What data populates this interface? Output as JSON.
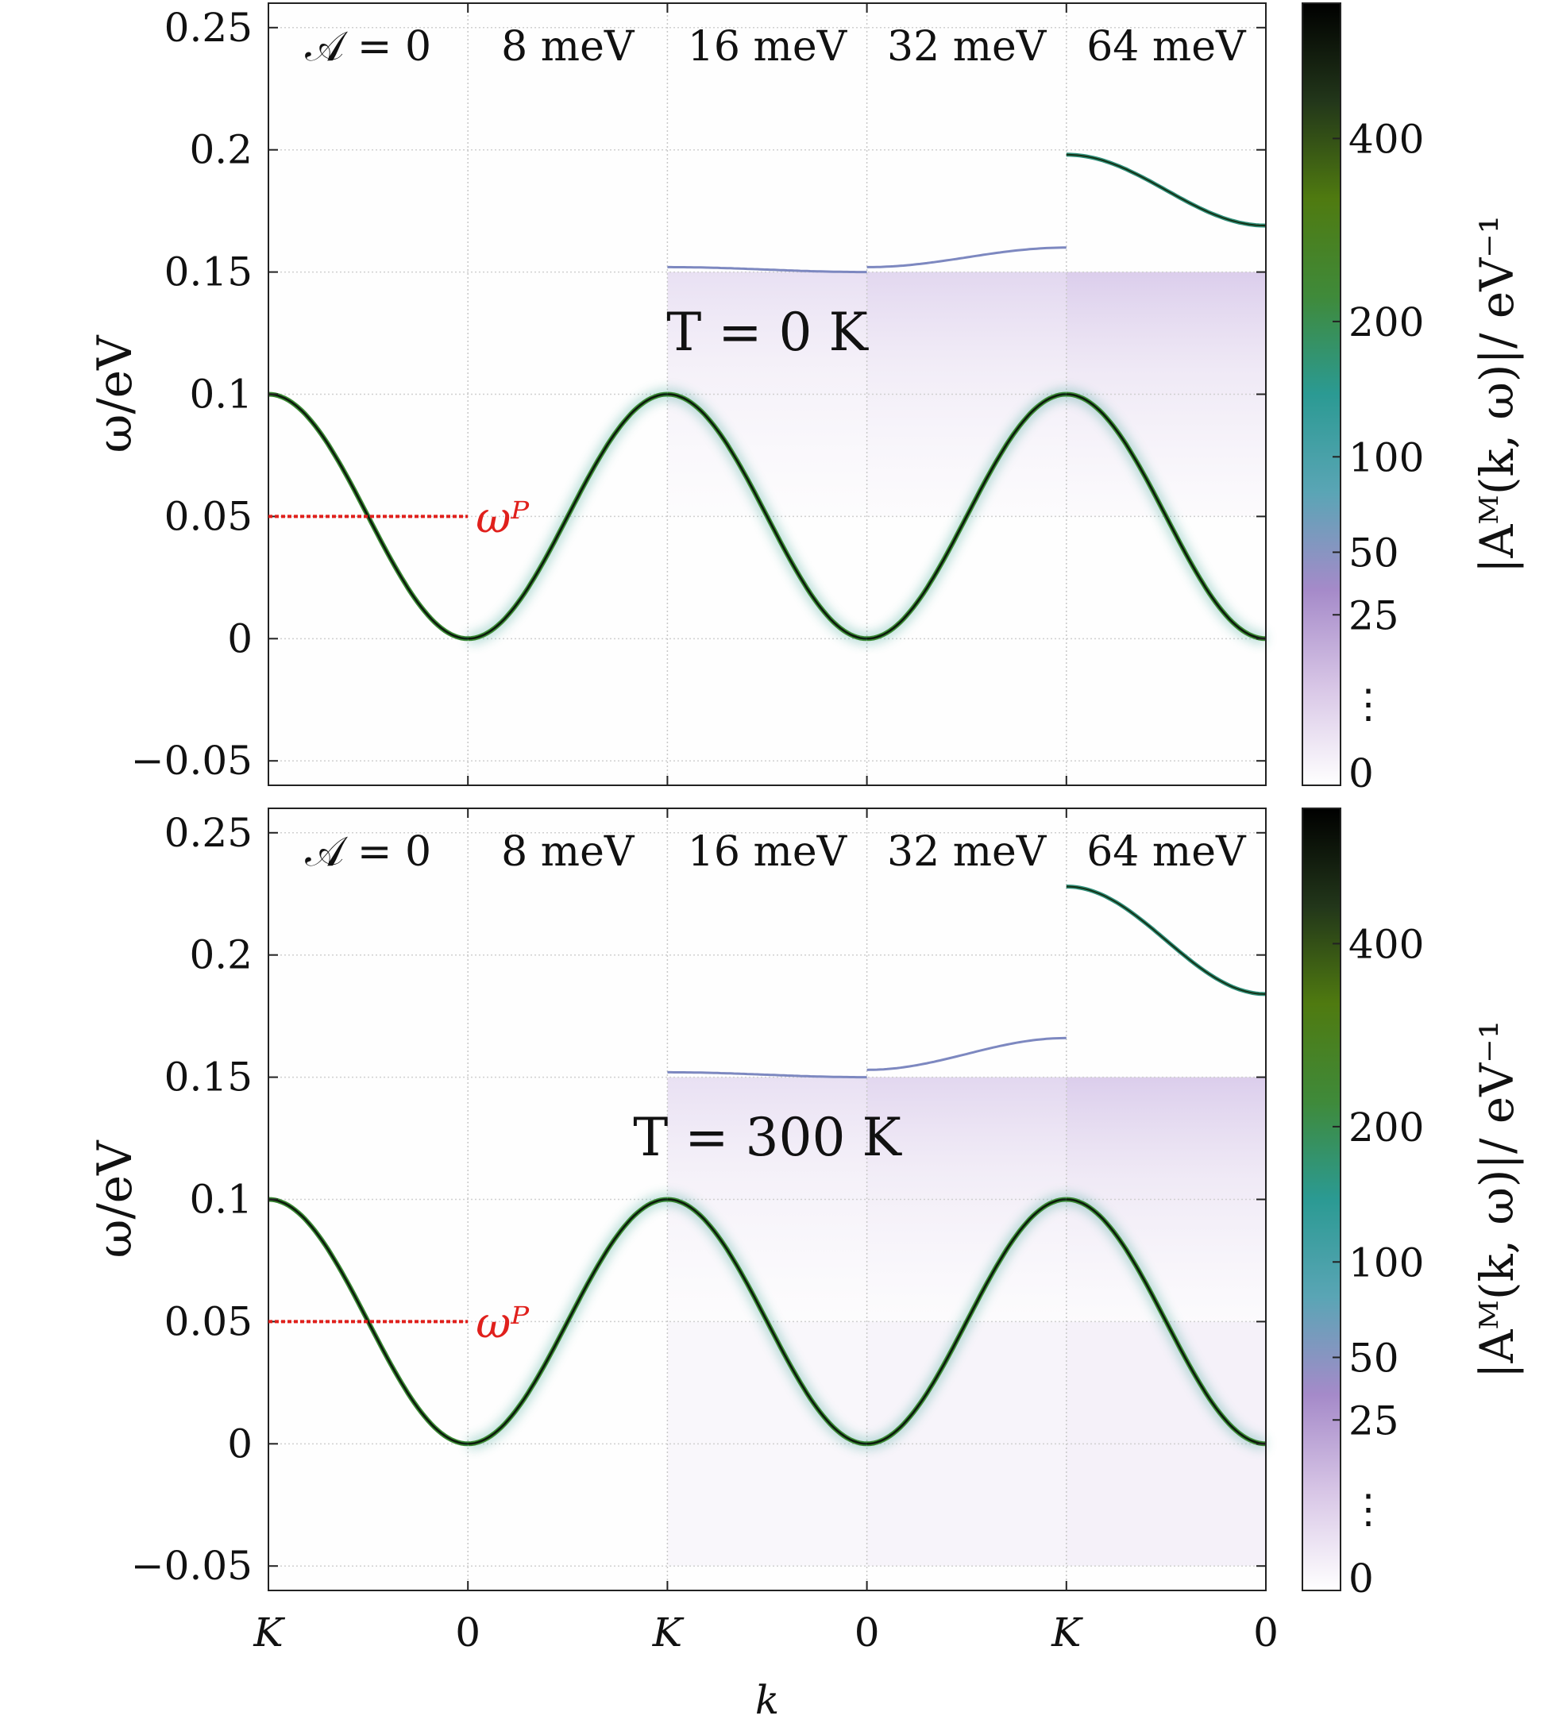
{
  "chart_data": {
    "type": "spectral_function",
    "shared": {
      "xlabel": "k",
      "ylabel": "ω/eV",
      "x_ticks": [
        "K",
        "0",
        "K",
        "0",
        "K",
        "0"
      ],
      "y_ticks": [
        {
          "value": -0.05,
          "label": "−0.05"
        },
        {
          "value": 0,
          "label": "0"
        },
        {
          "value": 0.05,
          "label": "0.05"
        },
        {
          "value": 0.1,
          "label": "0.1"
        },
        {
          "value": 0.15,
          "label": "0.15"
        },
        {
          "value": 0.2,
          "label": "0.2"
        },
        {
          "value": 0.25,
          "label": "0.25"
        }
      ],
      "ylim": [
        -0.06,
        0.26
      ],
      "section_labels": [
        "𝒜 = 0",
        "8 meV",
        "16 meV",
        "32 meV",
        "64 meV"
      ],
      "omega_P_label": "ωᴾ",
      "omega_P_value": 0.05,
      "colorbar": {
        "label": "|Aᴹ(k, ω)|/ eV⁻¹",
        "ticks": [
          "400",
          "200",
          "100",
          "50",
          "25",
          "⋮",
          "0"
        ],
        "colors": [
          "#ffffff",
          "#d8c6e6",
          "#a58ac9",
          "#5aa5b5",
          "#2b9a93",
          "#3f8a3a",
          "#4f7a10",
          "#22361a",
          "#000000"
        ]
      },
      "band_center": 0.05,
      "band_half_width": 0.05,
      "polaron_energy": 0.15
    },
    "panels": [
      {
        "title": "T = 0 K",
        "temperature_K": 0,
        "upper_branch_ends": [
          null,
          null,
          [
            0.152,
            0.15
          ],
          [
            0.152,
            0.16
          ],
          [
            0.198,
            0.169
          ]
        ]
      },
      {
        "title": "T = 300 K",
        "temperature_K": 300,
        "upper_branch_ends": [
          null,
          null,
          [
            0.152,
            0.15
          ],
          [
            0.153,
            0.166
          ],
          [
            0.228,
            0.184
          ]
        ]
      }
    ]
  }
}
